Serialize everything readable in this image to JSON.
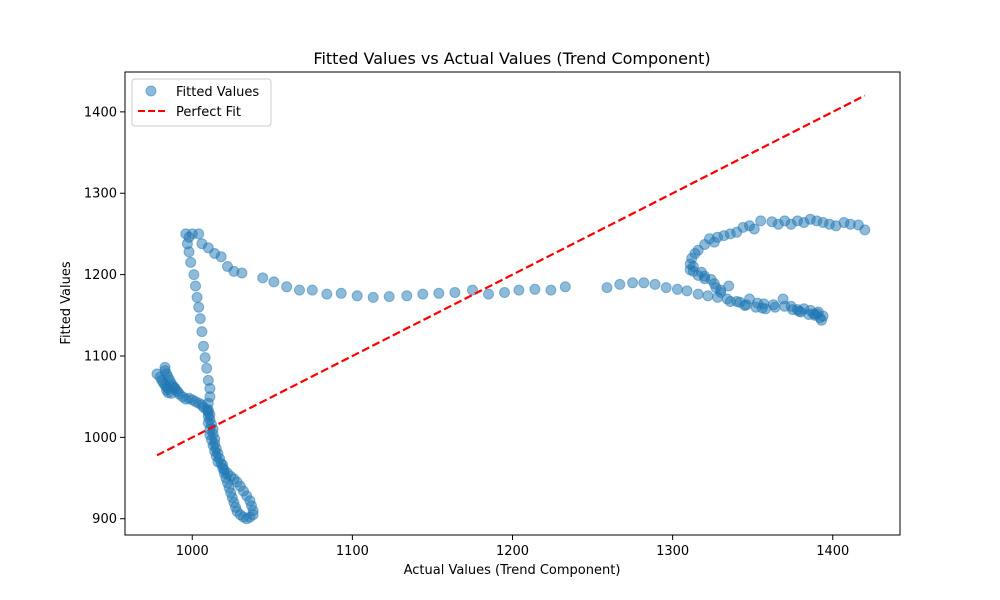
{
  "chart_data": {
    "type": "scatter",
    "title": "Fitted Values vs Actual Values (Trend Component)",
    "xlabel": "Actual Values (Trend Component)",
    "ylabel": "Fitted Values",
    "xlim": [
      958,
      1442
    ],
    "ylim": [
      880,
      1449
    ],
    "xticks": [
      1000,
      1100,
      1200,
      1300,
      1400
    ],
    "yticks": [
      900,
      1000,
      1100,
      1200,
      1300,
      1400
    ],
    "grid": false,
    "legend_position": "top-left",
    "series": [
      {
        "name": "Fitted Values",
        "kind": "scatter",
        "color": "#1f77b4",
        "points": [
          [
            978,
            1078
          ],
          [
            980,
            1074
          ],
          [
            981,
            1070
          ],
          [
            982,
            1067
          ],
          [
            983,
            1064
          ],
          [
            984,
            1062
          ],
          [
            985,
            1060
          ],
          [
            983,
            1086
          ],
          [
            983,
            1082
          ],
          [
            984,
            1078
          ],
          [
            985,
            1074
          ],
          [
            986,
            1070
          ],
          [
            987,
            1066
          ],
          [
            988,
            1063
          ],
          [
            989,
            1061
          ],
          [
            984,
            1058
          ],
          [
            985,
            1055
          ],
          [
            987,
            1054
          ],
          [
            989,
            1060
          ],
          [
            990,
            1058
          ],
          [
            991,
            1056
          ],
          [
            992,
            1053
          ],
          [
            994,
            1050
          ],
          [
            996,
            1047
          ],
          [
            998,
            1048
          ],
          [
            1000,
            1046
          ],
          [
            1002,
            1044
          ],
          [
            1004,
            1042
          ],
          [
            1006,
            1040
          ],
          [
            1007,
            1037
          ],
          [
            1009,
            1034
          ],
          [
            1010,
            1031
          ],
          [
            1011,
            1028
          ],
          [
            1011,
            1022
          ],
          [
            1012,
            1016
          ],
          [
            1013,
            1010
          ],
          [
            1013,
            1004
          ],
          [
            1014,
            998
          ],
          [
            1014,
            992
          ],
          [
            1015,
            986
          ],
          [
            1016,
            980
          ],
          [
            1017,
            974
          ],
          [
            1018,
            968
          ],
          [
            1019,
            962
          ],
          [
            1020,
            956
          ],
          [
            1021,
            950
          ],
          [
            1022,
            944
          ],
          [
            1023,
            938
          ],
          [
            1024,
            932
          ],
          [
            1025,
            926
          ],
          [
            1026,
            920
          ],
          [
            1027,
            914
          ],
          [
            1028,
            909
          ],
          [
            1030,
            905
          ],
          [
            1032,
            902
          ],
          [
            1034,
            900
          ],
          [
            1036,
            902
          ],
          [
            1038,
            905
          ],
          [
            1038,
            910
          ],
          [
            1037,
            916
          ],
          [
            1036,
            922
          ],
          [
            1034,
            928
          ],
          [
            1032,
            934
          ],
          [
            1030,
            940
          ],
          [
            1028,
            945
          ],
          [
            1026,
            949
          ],
          [
            1024,
            952
          ],
          [
            1022,
            956
          ],
          [
            1020,
            960
          ],
          [
            1019,
            966
          ],
          [
            1016,
            970
          ],
          [
            1015,
            977
          ],
          [
            1014,
            983
          ],
          [
            1013,
            990
          ],
          [
            1012,
            997
          ],
          [
            1011,
            1003
          ],
          [
            1011,
            1010
          ],
          [
            1010,
            1018
          ],
          [
            1010,
            1026
          ],
          [
            1010,
            1034
          ],
          [
            1010,
            1042
          ],
          [
            1011,
            1050
          ],
          [
            1011,
            1060
          ],
          [
            1010,
            1070
          ],
          [
            1009,
            1085
          ],
          [
            1008,
            1098
          ],
          [
            1007,
            1112
          ],
          [
            1006,
            1130
          ],
          [
            1005,
            1146
          ],
          [
            1004,
            1160
          ],
          [
            1003,
            1172
          ],
          [
            1002,
            1186
          ],
          [
            1001,
            1200
          ],
          [
            999,
            1215
          ],
          [
            998,
            1228
          ],
          [
            997,
            1238
          ],
          [
            998,
            1246
          ],
          [
            1000,
            1250
          ],
          [
            996,
            1250
          ],
          [
            1004,
            1250
          ],
          [
            1006,
            1238
          ],
          [
            1010,
            1233
          ],
          [
            1014,
            1226
          ],
          [
            1018,
            1222
          ],
          [
            1022,
            1210
          ],
          [
            1026,
            1204
          ],
          [
            1031,
            1202
          ],
          [
            1044,
            1196
          ],
          [
            1051,
            1191
          ],
          [
            1059,
            1185
          ],
          [
            1067,
            1181
          ],
          [
            1075,
            1181
          ],
          [
            1084,
            1176
          ],
          [
            1093,
            1177
          ],
          [
            1103,
            1174
          ],
          [
            1113,
            1172
          ],
          [
            1123,
            1173
          ],
          [
            1134,
            1174
          ],
          [
            1144,
            1176
          ],
          [
            1154,
            1177
          ],
          [
            1164,
            1178
          ],
          [
            1175,
            1181
          ],
          [
            1185,
            1176
          ],
          [
            1195,
            1178
          ],
          [
            1204,
            1181
          ],
          [
            1214,
            1182
          ],
          [
            1224,
            1181
          ],
          [
            1233,
            1185
          ],
          [
            1259,
            1184
          ],
          [
            1267,
            1188
          ],
          [
            1275,
            1190
          ],
          [
            1282,
            1190
          ],
          [
            1289,
            1188
          ],
          [
            1296,
            1184
          ],
          [
            1303,
            1182
          ],
          [
            1309,
            1180
          ],
          [
            1316,
            1176
          ],
          [
            1322,
            1174
          ],
          [
            1328,
            1172
          ],
          [
            1334,
            1170
          ],
          [
            1340,
            1167
          ],
          [
            1346,
            1163
          ],
          [
            1352,
            1160
          ],
          [
            1358,
            1158
          ],
          [
            1364,
            1160
          ],
          [
            1370,
            1161
          ],
          [
            1375,
            1157
          ],
          [
            1380,
            1154
          ],
          [
            1385,
            1151
          ],
          [
            1389,
            1150
          ],
          [
            1392,
            1147
          ],
          [
            1393,
            1144
          ],
          [
            1394,
            1149
          ],
          [
            1390,
            1152
          ],
          [
            1386,
            1156
          ],
          [
            1382,
            1158
          ],
          [
            1378,
            1157
          ],
          [
            1374,
            1161
          ],
          [
            1369,
            1170
          ],
          [
            1363,
            1163
          ],
          [
            1357,
            1164
          ],
          [
            1353,
            1165
          ],
          [
            1348,
            1170
          ],
          [
            1342,
            1166
          ],
          [
            1336,
            1167
          ],
          [
            1330,
            1178
          ],
          [
            1327,
            1184
          ],
          [
            1324,
            1194
          ],
          [
            1320,
            1198
          ],
          [
            1316,
            1199
          ],
          [
            1313,
            1204
          ],
          [
            1311,
            1206
          ],
          [
            1311,
            1213
          ],
          [
            1312,
            1220
          ],
          [
            1314,
            1226
          ],
          [
            1316,
            1230
          ],
          [
            1320,
            1237
          ],
          [
            1323,
            1244
          ],
          [
            1326,
            1240
          ],
          [
            1328,
            1246
          ],
          [
            1332,
            1248
          ],
          [
            1336,
            1250
          ],
          [
            1340,
            1252
          ],
          [
            1344,
            1258
          ],
          [
            1348,
            1260
          ],
          [
            1351,
            1256
          ],
          [
            1355,
            1266
          ],
          [
            1362,
            1265
          ],
          [
            1366,
            1262
          ],
          [
            1370,
            1266
          ],
          [
            1374,
            1262
          ],
          [
            1378,
            1266
          ],
          [
            1382,
            1264
          ],
          [
            1386,
            1268
          ],
          [
            1390,
            1266
          ],
          [
            1394,
            1264
          ],
          [
            1398,
            1262
          ],
          [
            1402,
            1260
          ],
          [
            1407,
            1264
          ],
          [
            1411,
            1262
          ],
          [
            1416,
            1261
          ],
          [
            1420,
            1255
          ],
          [
            1335,
            1186
          ],
          [
            1326,
            1189
          ],
          [
            1320,
            1195
          ],
          [
            1318,
            1203
          ],
          [
            1313,
            1210
          ],
          [
            1330,
            1181
          ],
          [
            1345,
            1162
          ],
          [
            1356,
            1159
          ],
          [
            1379,
            1155
          ],
          [
            1388,
            1152
          ],
          [
            1391,
            1154
          ]
        ]
      },
      {
        "name": "Perfect Fit",
        "kind": "line",
        "color": "#ff0000",
        "dash": "dashed",
        "points": [
          [
            978,
            978
          ],
          [
            1420,
            1420
          ]
        ]
      }
    ]
  }
}
